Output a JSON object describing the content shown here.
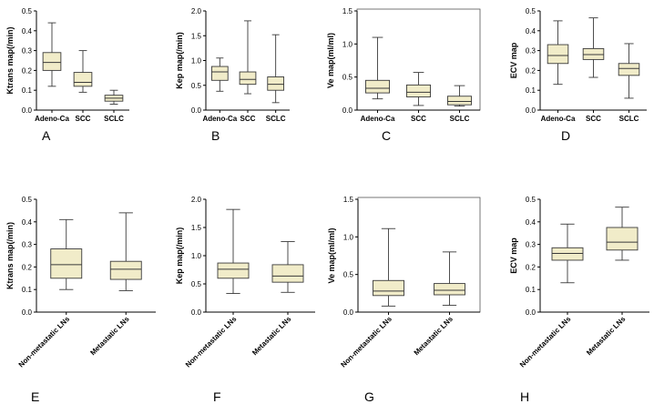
{
  "colors": {
    "box_fill": "#f1ecc9",
    "box_stroke": "#3a3a3a",
    "axis": "#000000",
    "background": "#ffffff"
  },
  "chart_data": [
    {
      "type": "box",
      "panel_label": "A",
      "ylabel": "Ktrans map(/min)",
      "ylim": [
        0,
        0.5
      ],
      "yticks": [
        0.0,
        0.1,
        0.2,
        0.3,
        0.4,
        0.5
      ],
      "ytick_labels": [
        "0.0",
        "0.1",
        "0.2",
        "0.3",
        "0.4",
        "0.5"
      ],
      "categories": [
        "Adeno-Ca",
        "SCC",
        "SCLC"
      ],
      "boxes": [
        {
          "min": 0.12,
          "q1": 0.2,
          "median": 0.24,
          "q3": 0.29,
          "max": 0.44
        },
        {
          "min": 0.09,
          "q1": 0.12,
          "median": 0.14,
          "q3": 0.19,
          "max": 0.3
        },
        {
          "min": 0.03,
          "q1": 0.045,
          "median": 0.06,
          "q3": 0.075,
          "max": 0.1
        }
      ],
      "rotated_labels": false,
      "frame": false
    },
    {
      "type": "box",
      "panel_label": "B",
      "ylabel": "Kep map(/min)",
      "ylim": [
        0,
        2.0
      ],
      "yticks": [
        0.0,
        0.5,
        1.0,
        1.5,
        2.0
      ],
      "ytick_labels": [
        "0.0",
        "0.5",
        "1.0",
        "1.5",
        "2.0"
      ],
      "categories": [
        "Adeno-Ca",
        "SCC",
        "SCLC"
      ],
      "boxes": [
        {
          "min": 0.38,
          "q1": 0.6,
          "median": 0.77,
          "q3": 0.88,
          "max": 1.05
        },
        {
          "min": 0.33,
          "q1": 0.52,
          "median": 0.62,
          "q3": 0.77,
          "max": 1.8
        },
        {
          "min": 0.15,
          "q1": 0.4,
          "median": 0.52,
          "q3": 0.67,
          "max": 1.52
        }
      ],
      "rotated_labels": false,
      "frame": false
    },
    {
      "type": "box",
      "panel_label": "C",
      "ylabel": "Ve map(ml/ml)",
      "ylim": [
        0,
        1.5
      ],
      "yticks": [
        0.0,
        0.5,
        1.0,
        1.5
      ],
      "ytick_labels": [
        "0.0",
        "0.5",
        "1.0",
        "1.5"
      ],
      "categories": [
        "Adeno-Ca",
        "SCC",
        "SCLC"
      ],
      "boxes": [
        {
          "min": 0.17,
          "q1": 0.26,
          "median": 0.33,
          "q3": 0.45,
          "max": 1.1
        },
        {
          "min": 0.07,
          "q1": 0.2,
          "median": 0.27,
          "q3": 0.38,
          "max": 0.57
        },
        {
          "min": 0.06,
          "q1": 0.08,
          "median": 0.13,
          "q3": 0.21,
          "max": 0.37
        }
      ],
      "rotated_labels": false,
      "frame": true
    },
    {
      "type": "box",
      "panel_label": "D",
      "ylabel": "ECV map",
      "ylim": [
        0,
        0.5
      ],
      "yticks": [
        0.0,
        0.1,
        0.2,
        0.3,
        0.4,
        0.5
      ],
      "ytick_labels": [
        "0.0",
        "0.1",
        "0.2",
        "0.3",
        "0.4",
        "0.5"
      ],
      "categories": [
        "Adeno-Ca",
        "SCC",
        "SCLC"
      ],
      "boxes": [
        {
          "min": 0.13,
          "q1": 0.235,
          "median": 0.275,
          "q3": 0.33,
          "max": 0.45
        },
        {
          "min": 0.165,
          "q1": 0.255,
          "median": 0.28,
          "q3": 0.31,
          "max": 0.465
        },
        {
          "min": 0.06,
          "q1": 0.175,
          "median": 0.21,
          "q3": 0.235,
          "max": 0.335
        }
      ],
      "rotated_labels": false,
      "frame": false
    },
    {
      "type": "box",
      "panel_label": "E",
      "ylabel": "Ktrans map(/min)",
      "ylim": [
        0,
        0.5
      ],
      "yticks": [
        0.0,
        0.1,
        0.2,
        0.3,
        0.4,
        0.5
      ],
      "ytick_labels": [
        "0.0",
        "0.1",
        "0.2",
        "0.3",
        "0.4",
        "0.5"
      ],
      "categories": [
        "Non-metastatic LNs",
        "Metastatic LNs"
      ],
      "boxes": [
        {
          "min": 0.1,
          "q1": 0.15,
          "median": 0.21,
          "q3": 0.28,
          "max": 0.41
        },
        {
          "min": 0.095,
          "q1": 0.145,
          "median": 0.19,
          "q3": 0.225,
          "max": 0.44
        }
      ],
      "rotated_labels": true,
      "frame": false
    },
    {
      "type": "box",
      "panel_label": "F",
      "ylabel": "Kep map(/min)",
      "ylim": [
        0,
        2.0
      ],
      "yticks": [
        0.0,
        0.5,
        1.0,
        1.5,
        2.0
      ],
      "ytick_labels": [
        "0.0",
        "0.5",
        "1.0",
        "1.5",
        "2.0"
      ],
      "categories": [
        "Non-metastatic LNs",
        "Metastatic LNs"
      ],
      "boxes": [
        {
          "min": 0.33,
          "q1": 0.6,
          "median": 0.76,
          "q3": 0.87,
          "max": 1.82
        },
        {
          "min": 0.35,
          "q1": 0.53,
          "median": 0.64,
          "q3": 0.84,
          "max": 1.25
        }
      ],
      "rotated_labels": true,
      "frame": false
    },
    {
      "type": "box",
      "panel_label": "G",
      "ylabel": "Ve map(ml/ml)",
      "ylim": [
        0,
        1.5
      ],
      "yticks": [
        0.0,
        0.5,
        1.0,
        1.5
      ],
      "ytick_labels": [
        "0.0",
        "0.5",
        "1.0",
        "1.5"
      ],
      "categories": [
        "Non-metastatic LNs",
        "Metastatic LNs"
      ],
      "boxes": [
        {
          "min": 0.08,
          "q1": 0.22,
          "median": 0.28,
          "q3": 0.42,
          "max": 1.11
        },
        {
          "min": 0.09,
          "q1": 0.23,
          "median": 0.29,
          "q3": 0.38,
          "max": 0.8
        }
      ],
      "rotated_labels": true,
      "frame": true
    },
    {
      "type": "box",
      "panel_label": "H",
      "ylabel": "ECV map",
      "ylim": [
        0,
        0.5
      ],
      "yticks": [
        0.0,
        0.1,
        0.2,
        0.3,
        0.4,
        0.5
      ],
      "ytick_labels": [
        "0.0",
        "0.1",
        "0.2",
        "0.3",
        "0.4",
        "0.5"
      ],
      "categories": [
        "Non-metastatic LNs",
        "Metastatic LNs"
      ],
      "boxes": [
        {
          "min": 0.13,
          "q1": 0.23,
          "median": 0.26,
          "q3": 0.285,
          "max": 0.39
        },
        {
          "min": 0.23,
          "q1": 0.275,
          "median": 0.31,
          "q3": 0.375,
          "max": 0.465
        }
      ],
      "rotated_labels": true,
      "frame": false
    }
  ]
}
